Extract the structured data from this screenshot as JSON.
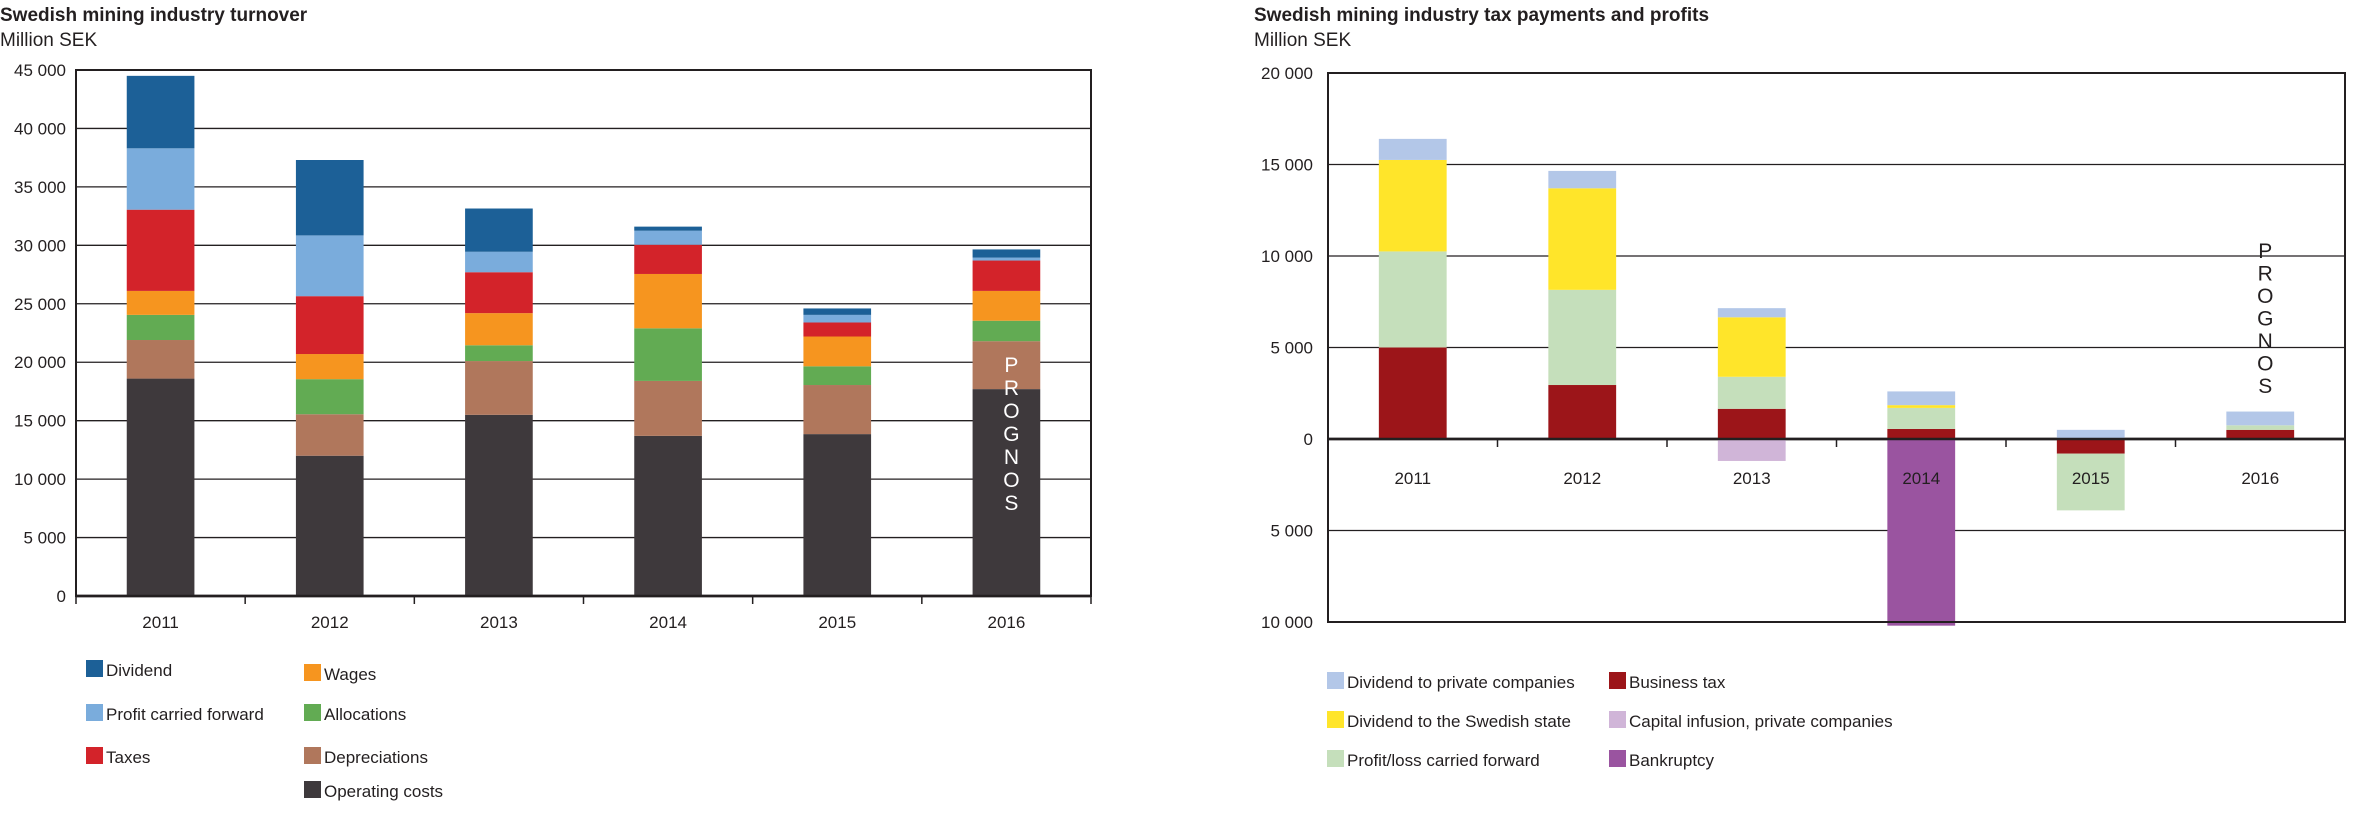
{
  "chart_data": [
    {
      "type": "bar",
      "stacked": true,
      "title": "Swedish mining industry turnover",
      "subtitle": "Million SEK",
      "categories": [
        "2011",
        "2012",
        "2013",
        "2014",
        "2015",
        "2016"
      ],
      "ylim": [
        0,
        45000
      ],
      "yticks": [
        0,
        5000,
        10000,
        15000,
        20000,
        25000,
        30000,
        35000,
        40000,
        45000
      ],
      "ytick_labels": [
        "0",
        "5 000",
        "10 000",
        "15 000",
        "20 000",
        "25 000",
        "30 000",
        "35 000",
        "40 000",
        "45 000"
      ],
      "grid": true,
      "legend_position": "bottom-left",
      "annotation": {
        "text": "PROGNOS",
        "category": "2016",
        "color": "#ffffff"
      },
      "series": [
        {
          "name": "Operating costs",
          "color": "#3e393c",
          "values": [
            18600,
            12000,
            15500,
            13700,
            13850,
            17700
          ]
        },
        {
          "name": "Depreciations",
          "color": "#b0775c",
          "values": [
            3300,
            3550,
            4600,
            4700,
            4200,
            4100
          ]
        },
        {
          "name": "Allocations",
          "color": "#62ab53",
          "values": [
            2150,
            3000,
            1350,
            4500,
            1600,
            1750
          ]
        },
        {
          "name": "Wages",
          "color": "#f6951f",
          "values": [
            2050,
            2150,
            2750,
            4650,
            2550,
            2550
          ]
        },
        {
          "name": "Taxes",
          "color": "#d3232a",
          "values": [
            6950,
            4950,
            3500,
            2500,
            1200,
            2600
          ]
        },
        {
          "name": "Profit carried forward",
          "color": "#7aacdc",
          "values": [
            5250,
            5200,
            1750,
            1200,
            650,
            250
          ]
        },
        {
          "name": "Dividend",
          "color": "#1c6097",
          "values": [
            6200,
            6450,
            3700,
            350,
            550,
            700
          ]
        }
      ],
      "legend_order": [
        [
          "Dividend",
          "Profit carried forward",
          "Taxes"
        ],
        [
          "Wages",
          "Allocations",
          "Depreciations",
          "Operating costs"
        ]
      ]
    },
    {
      "type": "bar",
      "stacked": true,
      "title": "Swedish mining industry tax payments and profits",
      "subtitle": "Million SEK",
      "categories": [
        "2011",
        "2012",
        "2013",
        "2014",
        "2015",
        "2016"
      ],
      "ylim": [
        -10000,
        20000
      ],
      "yticks": [
        20000,
        15000,
        10000,
        5000,
        0,
        -5000,
        -10000
      ],
      "ytick_labels": [
        "20 000",
        "15 000",
        "10 000",
        "5 000",
        "0",
        "5 000",
        "10 000"
      ],
      "grid": true,
      "legend_position": "bottom-left",
      "annotation": {
        "text": "PROGNOS",
        "category": "2016",
        "color": "#231f20"
      },
      "series": [
        {
          "name": "Business tax",
          "color": "#9c1519",
          "values": [
            5000,
            2950,
            1650,
            550,
            -800,
            500
          ]
        },
        {
          "name": "Profit/loss carried forward",
          "color": "#c5dfbb",
          "values": [
            5250,
            5200,
            1750,
            1150,
            -3100,
            250
          ]
        },
        {
          "name": "Dividend to the Swedish state",
          "color": "#ffe52a",
          "values": [
            5000,
            5550,
            3250,
            150,
            0,
            0
          ]
        },
        {
          "name": "Dividend to private companies",
          "color": "#b3c7e8",
          "values": [
            1150,
            950,
            500,
            750,
            500,
            750
          ]
        },
        {
          "name": "Capital infusion, private companies",
          "color": "#d0b5d8",
          "values": [
            0,
            0,
            -1200,
            0,
            0,
            0
          ]
        },
        {
          "name": "Bankruptcy",
          "color": "#9a54a0",
          "values": [
            0,
            0,
            0,
            -10200,
            0,
            0
          ]
        }
      ],
      "legend_order": [
        [
          "Dividend to private companies",
          "Dividend to the Swedish state",
          "Profit/loss carried forward"
        ],
        [
          "Business tax",
          "Capital infusion, private companies",
          "Bankruptcy"
        ]
      ]
    }
  ]
}
